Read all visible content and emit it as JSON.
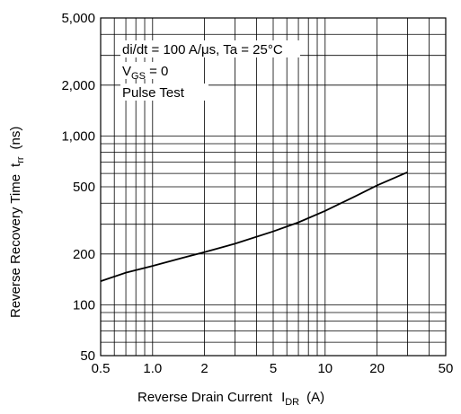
{
  "chart_data": {
    "type": "line",
    "x_scale": "log",
    "y_scale": "log",
    "xlim": [
      0.5,
      50
    ],
    "ylim": [
      50,
      5000
    ],
    "grid": true,
    "xlabel": {
      "main": "Reverse Drain Current",
      "symbol": "I",
      "subscript": "DR",
      "unit": "(A)"
    },
    "ylabel": {
      "main": "Reverse Recovery Time",
      "symbol": "t",
      "subscript": "rr",
      "unit": "(ns)"
    },
    "x_ticks": [
      {
        "value": 0.5,
        "label": "0.5"
      },
      {
        "value": 1,
        "label": "1.0"
      },
      {
        "value": 2,
        "label": "2"
      },
      {
        "value": 5,
        "label": "5"
      },
      {
        "value": 10,
        "label": "10"
      },
      {
        "value": 20,
        "label": "20"
      },
      {
        "value": 50,
        "label": "50"
      }
    ],
    "y_ticks": [
      {
        "value": 50,
        "label": "50"
      },
      {
        "value": 100,
        "label": "100"
      },
      {
        "value": 200,
        "label": "200"
      },
      {
        "value": 500,
        "label": "500"
      },
      {
        "value": 1000,
        "label": "1,000"
      },
      {
        "value": 2000,
        "label": "2,000"
      },
      {
        "value": 5000,
        "label": "5,000"
      }
    ],
    "annotations": {
      "line1": "di/dt = 100 A/μs, Ta = 25°C",
      "line2": {
        "symbol": "V",
        "subscript": "GS",
        "rest": " = 0"
      },
      "line3": "Pulse Test"
    },
    "series": [
      {
        "x": [
          0.5,
          0.7,
          1,
          1.5,
          2,
          3,
          5,
          7,
          10,
          15,
          20,
          30
        ],
        "y": [
          138,
          155,
          170,
          190,
          205,
          230,
          272,
          308,
          360,
          440,
          510,
          610
        ]
      }
    ]
  }
}
